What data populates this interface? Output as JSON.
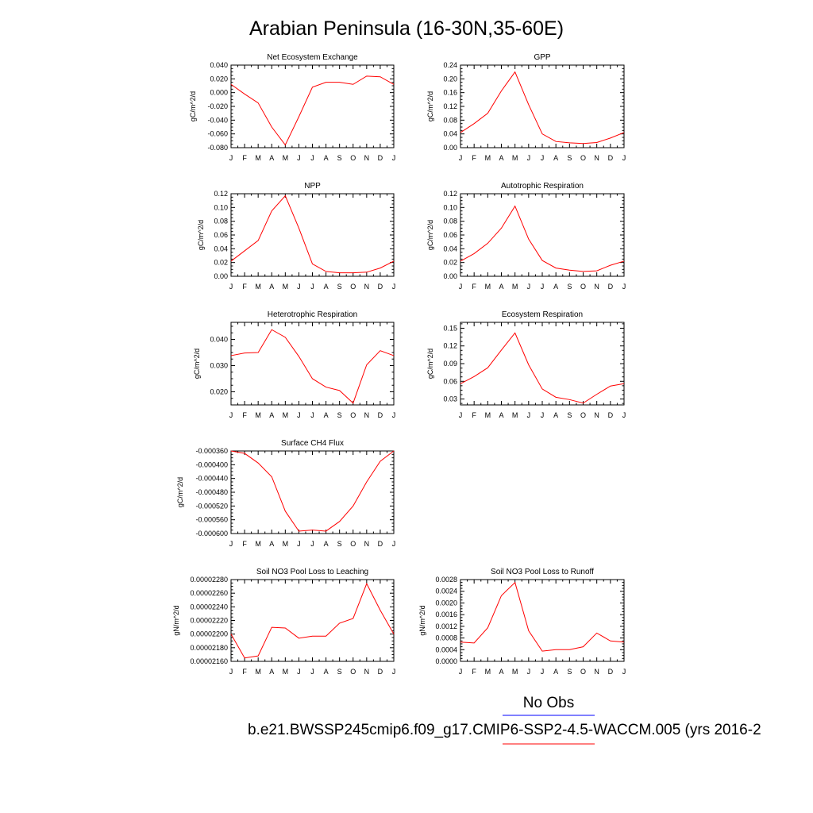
{
  "title": "Arabian Peninsula (16-30N,35-60E)",
  "legend": {
    "obs_label": "No Obs",
    "obs_color": "#0000ff",
    "model_label": "b.e21.BWSSP245cmip6.f09_g17.CMIP6-SSP2-4.5-WACCM.005 (yrs 2016-2",
    "model_color": "#ff0000"
  },
  "month_labels": [
    "J",
    "F",
    "M",
    "A",
    "M",
    "J",
    "J",
    "A",
    "S",
    "O",
    "N",
    "D",
    "J"
  ],
  "chart_data": [
    {
      "type": "line",
      "title": "Net Ecosystem Exchange",
      "ylabel": "gC/m^2/d",
      "ylim": [
        -0.08,
        0.04
      ],
      "yticks": [
        -0.08,
        -0.06,
        -0.04,
        -0.02,
        0.0,
        0.02,
        0.04
      ],
      "ytick_labels": [
        "-0.080",
        "-0.060",
        "-0.040",
        "-0.020",
        "0.000",
        "0.020",
        "0.040"
      ],
      "series": [
        {
          "values": [
            0.012,
            -0.002,
            -0.015,
            -0.05,
            -0.076,
            -0.035,
            0.008,
            0.015,
            0.015,
            0.012,
            0.024,
            0.023,
            0.012
          ]
        }
      ]
    },
    {
      "type": "line",
      "title": "GPP",
      "ylabel": "gC/m^2/d",
      "ylim": [
        0.0,
        0.24
      ],
      "yticks": [
        0.0,
        0.04,
        0.08,
        0.12,
        0.16,
        0.2,
        0.24
      ],
      "ytick_labels": [
        "0.00",
        "0.04",
        "0.08",
        "0.12",
        "0.16",
        "0.20",
        "0.24"
      ],
      "series": [
        {
          "values": [
            0.044,
            0.07,
            0.1,
            0.165,
            0.22,
            0.125,
            0.04,
            0.018,
            0.014,
            0.012,
            0.015,
            0.028,
            0.044
          ]
        }
      ]
    },
    {
      "type": "line",
      "title": "NPP",
      "ylabel": "gC/m^2/d",
      "ylim": [
        0.0,
        0.12
      ],
      "yticks": [
        0.0,
        0.02,
        0.04,
        0.06,
        0.08,
        0.1,
        0.12
      ],
      "ytick_labels": [
        "0.00",
        "0.02",
        "0.04",
        "0.06",
        "0.08",
        "0.10",
        "0.12"
      ],
      "series": [
        {
          "values": [
            0.022,
            0.037,
            0.052,
            0.095,
            0.117,
            0.07,
            0.018,
            0.007,
            0.005,
            0.005,
            0.006,
            0.012,
            0.022
          ]
        }
      ]
    },
    {
      "type": "line",
      "title": "Autotrophic Respiration",
      "ylabel": "gC/m^2/d",
      "ylim": [
        0.0,
        0.12
      ],
      "yticks": [
        0.0,
        0.02,
        0.04,
        0.06,
        0.08,
        0.1,
        0.12
      ],
      "ytick_labels": [
        "0.00",
        "0.02",
        "0.04",
        "0.06",
        "0.08",
        "0.10",
        "0.12"
      ],
      "series": [
        {
          "values": [
            0.022,
            0.033,
            0.048,
            0.07,
            0.102,
            0.054,
            0.023,
            0.012,
            0.009,
            0.007,
            0.008,
            0.016,
            0.022
          ]
        }
      ]
    },
    {
      "type": "line",
      "title": "Heterotrophic Respiration",
      "ylabel": "gC/m^2/d",
      "ylim": [
        0.015,
        0.0465
      ],
      "yticks": [
        0.02,
        0.03,
        0.04
      ],
      "ytick_labels": [
        "0.020",
        "0.030",
        "0.040"
      ],
      "series": [
        {
          "values": [
            0.0338,
            0.0348,
            0.035,
            0.0437,
            0.0408,
            0.0335,
            0.025,
            0.0218,
            0.0205,
            0.0157,
            0.0303,
            0.0357,
            0.0338
          ]
        }
      ]
    },
    {
      "type": "line",
      "title": "Ecosystem Respiration",
      "ylabel": "gC/m^2/d",
      "ylim": [
        0.02,
        0.16
      ],
      "yticks": [
        0.03,
        0.06,
        0.09,
        0.12,
        0.15
      ],
      "ytick_labels": [
        "0.03",
        "0.06",
        "0.09",
        "0.12",
        "0.15"
      ],
      "series": [
        {
          "values": [
            0.056,
            0.068,
            0.083,
            0.113,
            0.142,
            0.088,
            0.047,
            0.033,
            0.029,
            0.023,
            0.038,
            0.052,
            0.056
          ]
        }
      ]
    },
    {
      "type": "line",
      "title": "Surface CH4 Flux",
      "ylabel": "gC/m^2/d",
      "ylim": [
        -0.0006,
        -0.00036
      ],
      "yticks": [
        -0.0006,
        -0.00056,
        -0.00052,
        -0.00048,
        -0.00044,
        -0.0004,
        -0.00036
      ],
      "ytick_labels": [
        "-0.000600",
        "-0.000560",
        "-0.000520",
        "-0.000480",
        "-0.000440",
        "-0.000400",
        "-0.000360"
      ],
      "series": [
        {
          "values": [
            -0.00036,
            -0.000367,
            -0.000395,
            -0.000435,
            -0.000535,
            -0.000593,
            -0.00059,
            -0.000593,
            -0.000565,
            -0.00052,
            -0.00045,
            -0.00039,
            -0.00036
          ]
        }
      ]
    },
    {
      "type": "line",
      "title": "Soil NO3 Pool Loss to Leaching",
      "ylabel": "gN/m^2/d",
      "ylim": [
        2.16e-05,
        2.28e-05
      ],
      "yticks": [
        2.16e-05,
        2.18e-05,
        2.2e-05,
        2.22e-05,
        2.24e-05,
        2.26e-05,
        2.28e-05
      ],
      "ytick_labels": [
        "0.00002160",
        "0.00002180",
        "0.00002200",
        "0.00002220",
        "0.00002240",
        "0.00002260",
        "0.00002280"
      ],
      "series": [
        {
          "values": [
            2.2e-05,
            2.165e-05,
            2.168e-05,
            2.21e-05,
            2.209e-05,
            2.194e-05,
            2.197e-05,
            2.197e-05,
            2.216e-05,
            2.223e-05,
            2.274e-05,
            2.235e-05,
            2.2e-05
          ]
        }
      ]
    },
    {
      "type": "line",
      "title": "Soil NO3 Pool Loss to Runoff",
      "ylabel": "gN/m^2/d",
      "ylim": [
        0.0,
        0.0028
      ],
      "yticks": [
        0.0,
        0.0004,
        0.0008,
        0.0012,
        0.0016,
        0.002,
        0.0024,
        0.0028
      ],
      "ytick_labels": [
        "0.0000",
        "0.0004",
        "0.0008",
        "0.0012",
        "0.0016",
        "0.0020",
        "0.0024",
        "0.0028"
      ],
      "series": [
        {
          "values": [
            0.00066,
            0.00063,
            0.00115,
            0.00225,
            0.0027,
            0.00105,
            0.00035,
            0.0004,
            0.0004,
            0.0005,
            0.00097,
            0.0007,
            0.00066
          ]
        }
      ]
    }
  ]
}
